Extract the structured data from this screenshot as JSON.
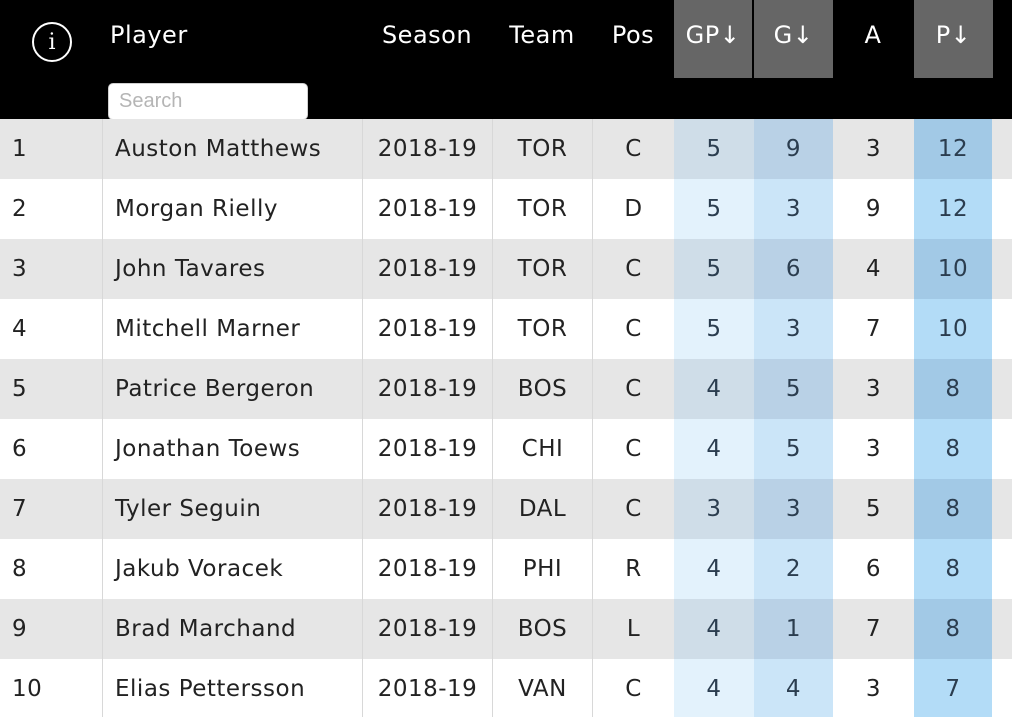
{
  "header": {
    "info_icon": "info-circle-icon",
    "info_glyph": "i",
    "columns": {
      "player": "Player",
      "season": "Season",
      "team": "Team",
      "pos": "Pos",
      "gp": "GP↓",
      "g": "G↓",
      "a": "A",
      "p": "P↓"
    }
  },
  "search": {
    "placeholder": "Search",
    "value": ""
  },
  "colors": {
    "header_bg": "#000000",
    "sorted_header_bg": "#666666",
    "row_stripe": "#e6e6e6",
    "highlight_blue": "#b3dcf7"
  },
  "rows": [
    {
      "rank": "1",
      "player": "Auston Matthews",
      "season": "2018-19",
      "team": "TOR",
      "pos": "C",
      "gp": "5",
      "g": "9",
      "a": "3",
      "p": "12"
    },
    {
      "rank": "2",
      "player": "Morgan Rielly",
      "season": "2018-19",
      "team": "TOR",
      "pos": "D",
      "gp": "5",
      "g": "3",
      "a": "9",
      "p": "12"
    },
    {
      "rank": "3",
      "player": "John Tavares",
      "season": "2018-19",
      "team": "TOR",
      "pos": "C",
      "gp": "5",
      "g": "6",
      "a": "4",
      "p": "10"
    },
    {
      "rank": "4",
      "player": "Mitchell Marner",
      "season": "2018-19",
      "team": "TOR",
      "pos": "C",
      "gp": "5",
      "g": "3",
      "a": "7",
      "p": "10"
    },
    {
      "rank": "5",
      "player": "Patrice Bergeron",
      "season": "2018-19",
      "team": "BOS",
      "pos": "C",
      "gp": "4",
      "g": "5",
      "a": "3",
      "p": "8"
    },
    {
      "rank": "6",
      "player": "Jonathan Toews",
      "season": "2018-19",
      "team": "CHI",
      "pos": "C",
      "gp": "4",
      "g": "5",
      "a": "3",
      "p": "8"
    },
    {
      "rank": "7",
      "player": "Tyler Seguin",
      "season": "2018-19",
      "team": "DAL",
      "pos": "C",
      "gp": "3",
      "g": "3",
      "a": "5",
      "p": "8"
    },
    {
      "rank": "8",
      "player": "Jakub Voracek",
      "season": "2018-19",
      "team": "PHI",
      "pos": "R",
      "gp": "4",
      "g": "2",
      "a": "6",
      "p": "8"
    },
    {
      "rank": "9",
      "player": "Brad Marchand",
      "season": "2018-19",
      "team": "BOS",
      "pos": "L",
      "gp": "4",
      "g": "1",
      "a": "7",
      "p": "8"
    },
    {
      "rank": "10",
      "player": "Elias Pettersson",
      "season": "2018-19",
      "team": "VAN",
      "pos": "C",
      "gp": "4",
      "g": "4",
      "a": "3",
      "p": "7"
    }
  ]
}
